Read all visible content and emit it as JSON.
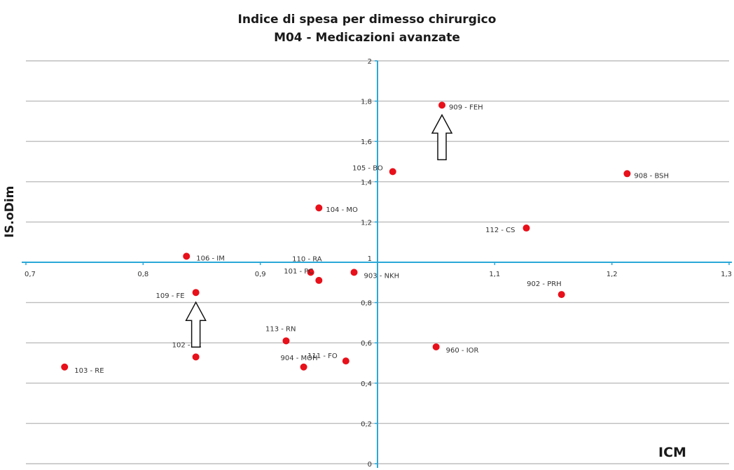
{
  "chart_data": {
    "type": "scatter",
    "title": "Indice di spesa per dimesso chirurgico",
    "subtitle": "M04 - Medicazioni avanzate",
    "xlabel": "ICM",
    "ylabel": "IS.oDim",
    "xlim": [
      0.7,
      1.3
    ],
    "ylim": [
      0,
      2
    ],
    "x_ticks": [
      "0,7",
      "0,8",
      "0,9",
      "1",
      "1,1",
      "1,2",
      "1,3"
    ],
    "y_ticks": [
      "0",
      "0,2",
      "0,4",
      "0,6",
      "0,8",
      "1",
      "1,2",
      "1,4",
      "1,6",
      "1,8",
      "2"
    ],
    "grid": "horizontal",
    "axes_cross_at": {
      "x": 1,
      "y": 1
    },
    "points": [
      {
        "label": "909 - FEH",
        "x": 1.055,
        "y": 1.78
      },
      {
        "label": "105 - BO",
        "x": 1.013,
        "y": 1.45
      },
      {
        "label": "908 - BSH",
        "x": 1.213,
        "y": 1.44
      },
      {
        "label": "104 - MO",
        "x": 0.95,
        "y": 1.27
      },
      {
        "label": "112 - CS",
        "x": 1.127,
        "y": 1.17
      },
      {
        "label": "106 - IM",
        "x": 0.837,
        "y": 1.03
      },
      {
        "label": "110 - RA",
        "x": 0.943,
        "y": 0.95
      },
      {
        "label": "101 - PC",
        "x": 0.95,
        "y": 0.91
      },
      {
        "label": "903 - NKH",
        "x": 0.98,
        "y": 0.95
      },
      {
        "label": "109 - FE",
        "x": 0.845,
        "y": 0.85
      },
      {
        "label": "902 - PRH",
        "x": 1.157,
        "y": 0.84
      },
      {
        "label": "113 - RN",
        "x": 0.922,
        "y": 0.61
      },
      {
        "label": "960 - IOR",
        "x": 1.05,
        "y": 0.58
      },
      {
        "label": "102 - PR",
        "x": 0.845,
        "y": 0.53
      },
      {
        "label": "111 - FO",
        "x": 0.973,
        "y": 0.51
      },
      {
        "label": "904 - MOH",
        "x": 0.937,
        "y": 0.48
      },
      {
        "label": "103 - RE",
        "x": 0.733,
        "y": 0.48
      }
    ],
    "colors": {
      "points": "#e8101a",
      "axes": "#2aa8d8",
      "grid": "#bdbdbd",
      "text": "#333333"
    },
    "annotations": [
      {
        "type": "arrow-up",
        "near": "909 - FEH"
      },
      {
        "type": "arrow-up",
        "near": "109 - FE"
      }
    ]
  }
}
